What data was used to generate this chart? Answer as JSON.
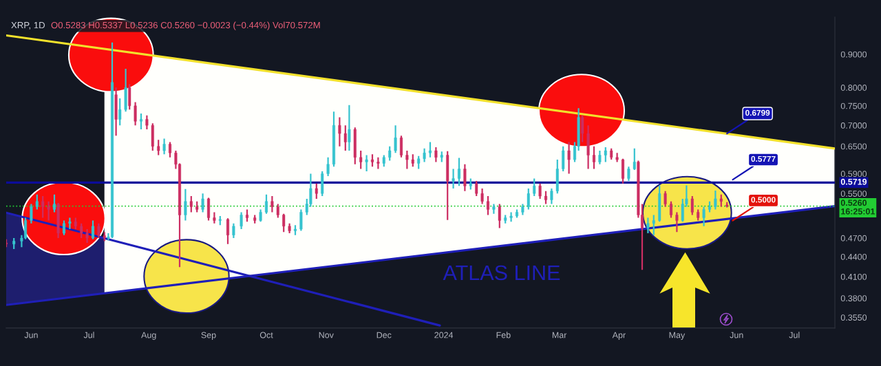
{
  "chart_data": {
    "type": "candlestick",
    "title": "XRP, 1D",
    "subtitle": "O0.5283 H0.5337 L0.5236 C0.5260 −0.0023 (−0.44%) Vol70.572M",
    "x": [
      "2023-05-19",
      "2023-05-23",
      "2023-05-27",
      "2023-05-29",
      "2023-06-01",
      "2023-06-04",
      "2023-06-07",
      "2023-06-10",
      "2023-06-13",
      "2023-06-15",
      "2023-06-18",
      "2023-06-21",
      "2023-06-24",
      "2023-06-27",
      "2023-06-30",
      "2023-07-03",
      "2023-07-06",
      "2023-07-09",
      "2023-07-11",
      "2023-07-13",
      "2023-07-15",
      "2023-07-17",
      "2023-07-20",
      "2023-07-22",
      "2023-07-25",
      "2023-07-28",
      "2023-07-31",
      "2023-08-03",
      "2023-08-06",
      "2023-08-09",
      "2023-08-12",
      "2023-08-15",
      "2023-08-17",
      "2023-08-20",
      "2023-08-23",
      "2023-08-26",
      "2023-08-29",
      "2023-09-01",
      "2023-09-04",
      "2023-09-07",
      "2023-09-11",
      "2023-09-14",
      "2023-09-18",
      "2023-09-21",
      "2023-09-25",
      "2023-09-28",
      "2023-10-01",
      "2023-10-04",
      "2023-10-07",
      "2023-10-10",
      "2023-10-13",
      "2023-10-16",
      "2023-10-19",
      "2023-10-22",
      "2023-10-24",
      "2023-10-27",
      "2023-10-30",
      "2023-11-02",
      "2023-11-05",
      "2023-11-08",
      "2023-11-11",
      "2023-11-13",
      "2023-11-16",
      "2023-11-19",
      "2023-11-22",
      "2023-11-25",
      "2023-11-28",
      "2023-12-01",
      "2023-12-04",
      "2023-12-07",
      "2023-12-10",
      "2023-12-13",
      "2023-12-16",
      "2023-12-19",
      "2023-12-22",
      "2023-12-25",
      "2023-12-28",
      "2023-12-31",
      "2024-01-03",
      "2024-01-06",
      "2024-01-09",
      "2024-01-12",
      "2024-01-15",
      "2024-01-18",
      "2024-01-21",
      "2024-01-24",
      "2024-01-27",
      "2024-01-30",
      "2024-02-02",
      "2024-02-05",
      "2024-02-08",
      "2024-02-11",
      "2024-02-14",
      "2024-02-17",
      "2024-02-20",
      "2024-02-23",
      "2024-02-26",
      "2024-02-29",
      "2024-03-03",
      "2024-03-06",
      "2024-03-09",
      "2024-03-11",
      "2024-03-13",
      "2024-03-16",
      "2024-03-19",
      "2024-03-22",
      "2024-03-25",
      "2024-03-28",
      "2024-03-31",
      "2024-04-03",
      "2024-04-06",
      "2024-04-09",
      "2024-04-11",
      "2024-04-13",
      "2024-04-16",
      "2024-04-19",
      "2024-04-22",
      "2024-04-25",
      "2024-04-28",
      "2024-05-01",
      "2024-05-04",
      "2024-05-06",
      "2024-05-09",
      "2024-05-12",
      "2024-05-15",
      "2024-05-18",
      "2024-05-21",
      "2024-05-24",
      "2024-05-27"
    ],
    "ohlc": [
      [
        0.462,
        0.468,
        0.455,
        0.46
      ],
      [
        0.46,
        0.47,
        0.452,
        0.465
      ],
      [
        0.465,
        0.475,
        0.455,
        0.47
      ],
      [
        0.47,
        0.505,
        0.468,
        0.5
      ],
      [
        0.5,
        0.53,
        0.495,
        0.525
      ],
      [
        0.525,
        0.548,
        0.52,
        0.535
      ],
      [
        0.535,
        0.545,
        0.505,
        0.525
      ],
      [
        0.525,
        0.535,
        0.5,
        0.52
      ],
      [
        0.52,
        0.548,
        0.515,
        0.53
      ],
      [
        0.53,
        0.532,
        0.47,
        0.478
      ],
      [
        0.478,
        0.5,
        0.475,
        0.495
      ],
      [
        0.495,
        0.505,
        0.485,
        0.498
      ],
      [
        0.498,
        0.505,
        0.485,
        0.49
      ],
      [
        0.49,
        0.495,
        0.47,
        0.478
      ],
      [
        0.478,
        0.485,
        0.462,
        0.47
      ],
      [
        0.47,
        0.5,
        0.468,
        0.49
      ],
      [
        0.49,
        0.495,
        0.47,
        0.474
      ],
      [
        0.474,
        0.48,
        0.465,
        0.47
      ],
      [
        0.47,
        0.478,
        0.466,
        0.472
      ],
      [
        0.472,
        0.938,
        0.47,
        0.815
      ],
      [
        0.78,
        0.8,
        0.675,
        0.715
      ],
      [
        0.715,
        0.77,
        0.7,
        0.74
      ],
      [
        0.74,
        0.855,
        0.735,
        0.8
      ],
      [
        0.8,
        0.81,
        0.74,
        0.75
      ],
      [
        0.75,
        0.76,
        0.7,
        0.71
      ],
      [
        0.71,
        0.73,
        0.69,
        0.715
      ],
      [
        0.715,
        0.725,
        0.69,
        0.7
      ],
      [
        0.7,
        0.705,
        0.64,
        0.65
      ],
      [
        0.65,
        0.665,
        0.63,
        0.64
      ],
      [
        0.64,
        0.668,
        0.632,
        0.655
      ],
      [
        0.655,
        0.66,
        0.625,
        0.635
      ],
      [
        0.635,
        0.64,
        0.6,
        0.61
      ],
      [
        0.61,
        0.612,
        0.424,
        0.51
      ],
      [
        0.51,
        0.559,
        0.5,
        0.535
      ],
      [
        0.535,
        0.545,
        0.515,
        0.525
      ],
      [
        0.525,
        0.535,
        0.515,
        0.52
      ],
      [
        0.52,
        0.55,
        0.515,
        0.54
      ],
      [
        0.54,
        0.542,
        0.5,
        0.505
      ],
      [
        0.505,
        0.515,
        0.495,
        0.5
      ],
      [
        0.5,
        0.508,
        0.492,
        0.502
      ],
      [
        0.502,
        0.504,
        0.46,
        0.475
      ],
      [
        0.475,
        0.495,
        0.47,
        0.49
      ],
      [
        0.49,
        0.515,
        0.485,
        0.51
      ],
      [
        0.51,
        0.52,
        0.498,
        0.505
      ],
      [
        0.505,
        0.51,
        0.495,
        0.5
      ],
      [
        0.5,
        0.52,
        0.498,
        0.515
      ],
      [
        0.515,
        0.548,
        0.512,
        0.535
      ],
      [
        0.535,
        0.545,
        0.515,
        0.525
      ],
      [
        0.525,
        0.53,
        0.505,
        0.51
      ],
      [
        0.51,
        0.512,
        0.48,
        0.49
      ],
      [
        0.49,
        0.495,
        0.478,
        0.482
      ],
      [
        0.482,
        0.492,
        0.475,
        0.485
      ],
      [
        0.485,
        0.52,
        0.482,
        0.515
      ],
      [
        0.515,
        0.54,
        0.51,
        0.53
      ],
      [
        0.53,
        0.59,
        0.525,
        0.56
      ],
      [
        0.56,
        0.57,
        0.54,
        0.55
      ],
      [
        0.55,
        0.595,
        0.545,
        0.59
      ],
      [
        0.59,
        0.625,
        0.585,
        0.61
      ],
      [
        0.61,
        0.735,
        0.605,
        0.7
      ],
      [
        0.7,
        0.72,
        0.65,
        0.68
      ],
      [
        0.68,
        0.7,
        0.64,
        0.66
      ],
      [
        0.66,
        0.752,
        0.64,
        0.69
      ],
      [
        0.69,
        0.695,
        0.61,
        0.625
      ],
      [
        0.625,
        0.64,
        0.6,
        0.615
      ],
      [
        0.615,
        0.63,
        0.595,
        0.62
      ],
      [
        0.62,
        0.632,
        0.605,
        0.615
      ],
      [
        0.615,
        0.625,
        0.6,
        0.612
      ],
      [
        0.612,
        0.63,
        0.605,
        0.625
      ],
      [
        0.625,
        0.65,
        0.618,
        0.64
      ],
      [
        0.64,
        0.7,
        0.635,
        0.67
      ],
      [
        0.67,
        0.675,
        0.625,
        0.63
      ],
      [
        0.63,
        0.64,
        0.6,
        0.62
      ],
      [
        0.62,
        0.632,
        0.605,
        0.612
      ],
      [
        0.612,
        0.628,
        0.6,
        0.622
      ],
      [
        0.622,
        0.645,
        0.615,
        0.635
      ],
      [
        0.635,
        0.66,
        0.625,
        0.64
      ],
      [
        0.64,
        0.648,
        0.615,
        0.625
      ],
      [
        0.625,
        0.638,
        0.615,
        0.63
      ],
      [
        0.63,
        0.639,
        0.501,
        0.575
      ],
      [
        0.575,
        0.6,
        0.56,
        0.58
      ],
      [
        0.58,
        0.624,
        0.565,
        0.6
      ],
      [
        0.6,
        0.61,
        0.555,
        0.565
      ],
      [
        0.565,
        0.58,
        0.558,
        0.57
      ],
      [
        0.57,
        0.575,
        0.545,
        0.55
      ],
      [
        0.55,
        0.56,
        0.53,
        0.535
      ],
      [
        0.535,
        0.545,
        0.51,
        0.52
      ],
      [
        0.52,
        0.53,
        0.512,
        0.525
      ],
      [
        0.525,
        0.53,
        0.487,
        0.5
      ],
      [
        0.5,
        0.51,
        0.495,
        0.505
      ],
      [
        0.505,
        0.515,
        0.498,
        0.508
      ],
      [
        0.508,
        0.52,
        0.505,
        0.515
      ],
      [
        0.515,
        0.53,
        0.51,
        0.525
      ],
      [
        0.525,
        0.56,
        0.52,
        0.55
      ],
      [
        0.55,
        0.58,
        0.545,
        0.565
      ],
      [
        0.565,
        0.57,
        0.54,
        0.545
      ],
      [
        0.545,
        0.555,
        0.53,
        0.538
      ],
      [
        0.538,
        0.56,
        0.53,
        0.555
      ],
      [
        0.555,
        0.62,
        0.55,
        0.6
      ],
      [
        0.6,
        0.65,
        0.595,
        0.64
      ],
      [
        0.64,
        0.66,
        0.59,
        0.62
      ],
      [
        0.62,
        0.66,
        0.615,
        0.65
      ],
      [
        0.65,
        0.744,
        0.64,
        0.72
      ],
      [
        0.72,
        0.725,
        0.66,
        0.68
      ],
      [
        0.68,
        0.7,
        0.6,
        0.63
      ],
      [
        0.63,
        0.65,
        0.6,
        0.615
      ],
      [
        0.615,
        0.64,
        0.61,
        0.63
      ],
      [
        0.63,
        0.648,
        0.615,
        0.64
      ],
      [
        0.64,
        0.645,
        0.62,
        0.625
      ],
      [
        0.625,
        0.635,
        0.615,
        0.62
      ],
      [
        0.62,
        0.622,
        0.57,
        0.58
      ],
      [
        0.58,
        0.605,
        0.575,
        0.6
      ],
      [
        0.6,
        0.645,
        0.598,
        0.615
      ],
      [
        0.615,
        0.618,
        0.505,
        0.51
      ],
      [
        0.51,
        0.53,
        0.42,
        0.487
      ],
      [
        0.487,
        0.505,
        0.478,
        0.495
      ],
      [
        0.495,
        0.51,
        0.475,
        0.5
      ],
      [
        0.5,
        0.566,
        0.498,
        0.55
      ],
      [
        0.55,
        0.555,
        0.525,
        0.53
      ],
      [
        0.53,
        0.535,
        0.505,
        0.51
      ],
      [
        0.51,
        0.515,
        0.48,
        0.5
      ],
      [
        0.5,
        0.54,
        0.498,
        0.53
      ],
      [
        0.53,
        0.566,
        0.525,
        0.54
      ],
      [
        0.54,
        0.545,
        0.51,
        0.515
      ],
      [
        0.515,
        0.52,
        0.5,
        0.505
      ],
      [
        0.505,
        0.525,
        0.49,
        0.52
      ],
      [
        0.52,
        0.535,
        0.515,
        0.525
      ],
      [
        0.525,
        0.556,
        0.52,
        0.54
      ],
      [
        0.54,
        0.548,
        0.525,
        0.535
      ],
      [
        0.5283,
        0.5337,
        0.5236,
        0.526
      ]
    ],
    "colors": [
      "#cc2e62",
      "#36c3cf",
      "#36c3cf",
      "#36c3cf",
      "#36c3cf",
      "#36c3cf",
      "#cc2e62",
      "#cc2e62",
      "#36c3cf",
      "#cc2e62",
      "#36c3cf",
      "#36c3cf",
      "#cc2e62",
      "#cc2e62",
      "#cc2e62",
      "#36c3cf",
      "#cc2e62",
      "#cc2e62",
      "#36c3cf",
      "#36c3cf",
      "#cc2e62",
      "#36c3cf",
      "#36c3cf",
      "#cc2e62",
      "#cc2e62",
      "#36c3cf",
      "#cc2e62",
      "#cc2e62",
      "#cc2e62",
      "#36c3cf",
      "#cc2e62",
      "#cc2e62",
      "#cc2e62",
      "#36c3cf",
      "#cc2e62",
      "#cc2e62",
      "#36c3cf",
      "#cc2e62",
      "#cc2e62",
      "#36c3cf",
      "#cc2e62",
      "#36c3cf",
      "#36c3cf",
      "#cc2e62",
      "#cc2e62",
      "#36c3cf",
      "#36c3cf",
      "#cc2e62",
      "#cc2e62",
      "#cc2e62",
      "#cc2e62",
      "#36c3cf",
      "#36c3cf",
      "#36c3cf",
      "#36c3cf",
      "#cc2e62",
      "#36c3cf",
      "#36c3cf",
      "#36c3cf",
      "#cc2e62",
      "#cc2e62",
      "#36c3cf",
      "#cc2e62",
      "#cc2e62",
      "#36c3cf",
      "#cc2e62",
      "#cc2e62",
      "#36c3cf",
      "#36c3cf",
      "#36c3cf",
      "#cc2e62",
      "#cc2e62",
      "#cc2e62",
      "#36c3cf",
      "#36c3cf",
      "#36c3cf",
      "#cc2e62",
      "#36c3cf",
      "#cc2e62",
      "#36c3cf",
      "#36c3cf",
      "#cc2e62",
      "#36c3cf",
      "#cc2e62",
      "#cc2e62",
      "#cc2e62",
      "#36c3cf",
      "#cc2e62",
      "#36c3cf",
      "#36c3cf",
      "#36c3cf",
      "#36c3cf",
      "#36c3cf",
      "#36c3cf",
      "#cc2e62",
      "#cc2e62",
      "#36c3cf",
      "#36c3cf",
      "#36c3cf",
      "#cc2e62",
      "#36c3cf",
      "#36c3cf",
      "#cc2e62",
      "#cc2e62",
      "#cc2e62",
      "#36c3cf",
      "#36c3cf",
      "#cc2e62",
      "#cc2e62",
      "#cc2e62",
      "#36c3cf",
      "#36c3cf",
      "#cc2e62",
      "#cc2e62",
      "#36c3cf",
      "#36c3cf",
      "#36c3cf",
      "#cc2e62",
      "#cc2e62",
      "#cc2e62",
      "#36c3cf",
      "#36c3cf",
      "#cc2e62",
      "#cc2e62",
      "#36c3cf",
      "#36c3cf",
      "#36c3cf",
      "#cc2e62",
      "#cc2e62"
    ],
    "series": [
      {
        "type": "line",
        "x": [
          "2023-05-19",
          "2023-09-15",
          "2024-07-22"
        ],
        "values": [
          0.962,
          0.861,
          0.645
        ],
        "lower": [
          null,
          0.409,
          0.526
        ],
        "upper": [
          null,
          0.861,
          0.645
        ],
        "color": "#f2e12c"
      },
      {
        "type": "line",
        "name": "ATLAS LINE",
        "x": [
          "2023-05-19",
          "2024-07-22"
        ],
        "values": [
          0.371,
          0.526
        ],
        "color": "#1f1fb8"
      },
      {
        "type": "line",
        "x": [
          "2023-05-19",
          "2023-12-30"
        ],
        "values": [
          0.514,
          0.345
        ],
        "color": "#1f1fb8"
      }
    ],
    "ref_lines": [
      {
        "axis": "y",
        "value": 0.5719,
        "label": "0.5719",
        "color": "#0c0c9a"
      },
      {
        "axis": "y",
        "value": 0.526,
        "label": "0.5260\n16:25:01",
        "color": "#22cc33",
        "line_style": "dotted"
      }
    ],
    "annotations": [
      {
        "text": "0.6799",
        "x": "2024-05-27",
        "y": 0.6799
      },
      {
        "text": "0.5777",
        "x": "2024-05-30",
        "y": 0.5777
      },
      {
        "text": "0.5000",
        "x": "2024-05-30",
        "y": 0.5
      }
    ],
    "xlim": [
      "2023-05-19",
      "2024-07-22"
    ],
    "ylim": [
      0.342,
      1.026
    ],
    "log": "y",
    "xticks": [
      {
        "value": "2023-06-01",
        "label": "Jun"
      },
      {
        "value": "2023-07-01",
        "label": "Jul"
      },
      {
        "value": "2023-08-01",
        "label": "Aug"
      },
      {
        "value": "2023-09-01",
        "label": "Sep"
      },
      {
        "value": "2023-10-01",
        "label": "Oct"
      },
      {
        "value": "2023-11-01",
        "label": "Nov"
      },
      {
        "value": "2023-12-01",
        "label": "Dec"
      },
      {
        "value": "2024-01-01",
        "label": "2024"
      },
      {
        "value": "2024-02-01",
        "label": "Feb"
      },
      {
        "value": "2024-03-01",
        "label": "Mar"
      },
      {
        "value": "2024-04-01",
        "label": "Apr"
      },
      {
        "value": "2024-05-01",
        "label": "May"
      },
      {
        "value": "2024-06-01",
        "label": "Jun"
      },
      {
        "value": "2024-07-01",
        "label": "Jul"
      }
    ],
    "yticks": [
      {
        "value": 0.355,
        "label": "0.3550"
      },
      {
        "value": 0.38,
        "label": "0.3800"
      },
      {
        "value": 0.41,
        "label": "0.4100"
      },
      {
        "value": 0.44,
        "label": "0.4400"
      },
      {
        "value": 0.47,
        "label": "0.4700"
      },
      {
        "value": 0.55,
        "label": "0.5500"
      },
      {
        "value": 0.59,
        "label": "0.5900"
      },
      {
        "value": 0.65,
        "label": "0.6500"
      },
      {
        "value": 0.7,
        "label": "0.7000"
      },
      {
        "value": 0.75,
        "label": "0.7500"
      },
      {
        "value": 0.8,
        "label": "0.8000"
      },
      {
        "value": 0.9,
        "label": "0.9000"
      }
    ]
  }
}
